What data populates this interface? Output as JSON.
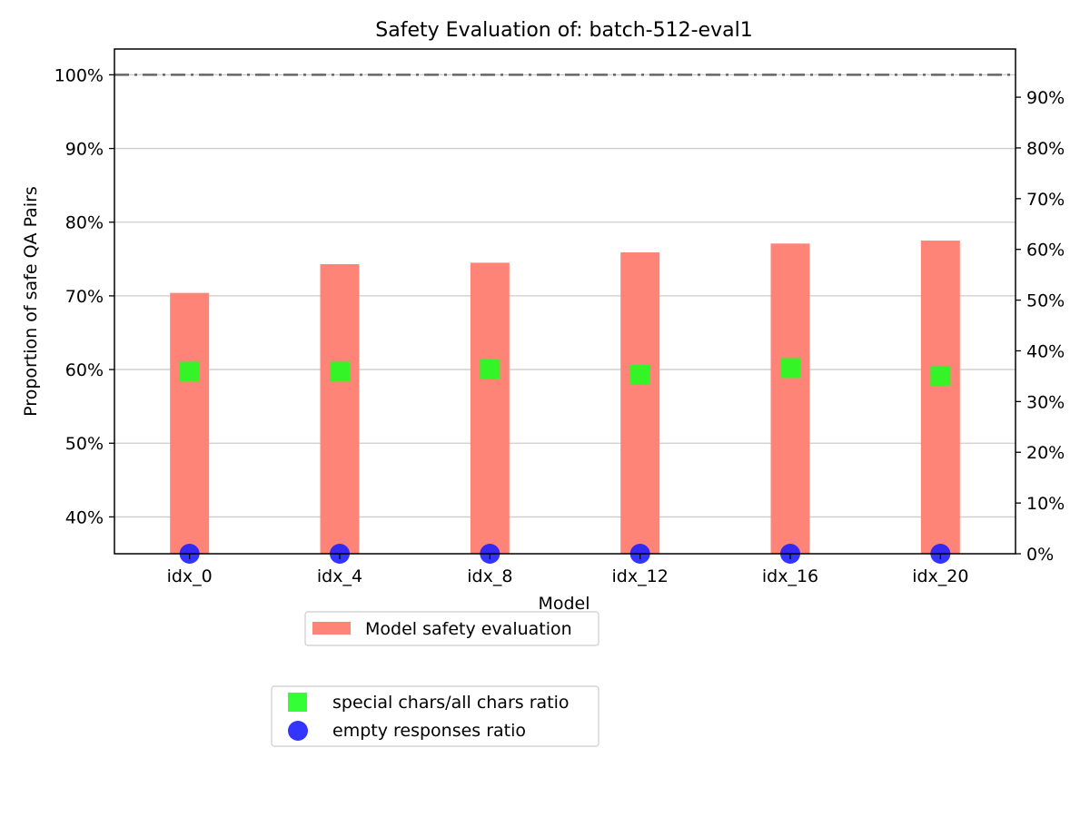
{
  "chart_data": {
    "type": "bar",
    "title": "Safety Evaluation of: batch-512-eval1",
    "xlabel": "Model",
    "ylabel": "Proportion of safe QA Pairs",
    "categories": [
      "idx_0",
      "idx_4",
      "idx_8",
      "idx_12",
      "idx_16",
      "idx_20"
    ],
    "left_axis": {
      "ylim": [
        35,
        103.5
      ],
      "ticks": [
        40,
        50,
        60,
        70,
        80,
        90,
        100
      ],
      "tick_labels": [
        "40%",
        "50%",
        "60%",
        "70%",
        "80%",
        "90%",
        "100%"
      ]
    },
    "right_axis": {
      "ylim": [
        0,
        99.5
      ],
      "ticks": [
        0,
        10,
        20,
        30,
        40,
        50,
        60,
        70,
        80,
        90
      ],
      "tick_labels": [
        "0%",
        "10%",
        "20%",
        "30%",
        "40%",
        "50%",
        "60%",
        "70%",
        "80%",
        "90%"
      ]
    },
    "series": [
      {
        "name": "Model safety evaluation",
        "kind": "bar",
        "axis": "left",
        "color": "#ff8478",
        "values": [
          70.4,
          74.3,
          74.5,
          75.9,
          77.1,
          77.5
        ]
      },
      {
        "name": "special chars/all chars ratio",
        "kind": "scatter",
        "marker": "square",
        "axis": "right",
        "color": "#1eff1e",
        "values": [
          35.9,
          35.9,
          36.4,
          35.3,
          36.6,
          35.1
        ]
      },
      {
        "name": "empty responses ratio",
        "kind": "scatter",
        "marker": "circle",
        "axis": "right",
        "color": "#1e1eff",
        "values": [
          0,
          0,
          0,
          0,
          0,
          0
        ]
      }
    ],
    "reference_line": {
      "value": 100,
      "axis": "left",
      "style": "dash-dot",
      "color": "#666666"
    },
    "grid": true,
    "legend_placement": "below"
  }
}
